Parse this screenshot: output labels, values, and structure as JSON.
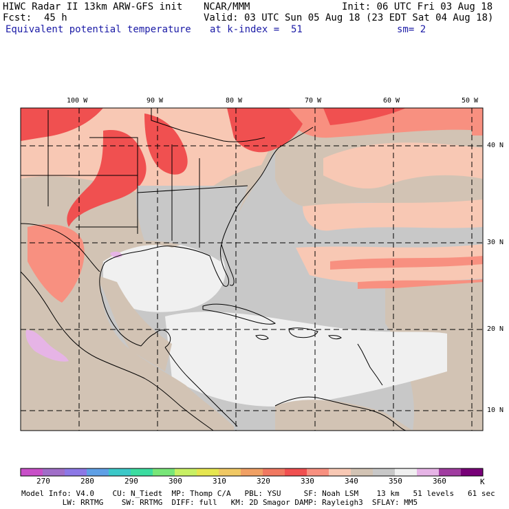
{
  "header": {
    "title": "HIWC Radar II 13km ARW-GFS init",
    "org": "NCAR/MMM",
    "init": "Init: 06 UTC Fri 03 Aug 18",
    "fcst_label": "Fcst:",
    "fcst_value": "45 h",
    "valid": "Valid: 03 UTC Sun 05 Aug 18 (23 EDT Sat 04 Aug 18)",
    "field": "Equivalent potential temperature",
    "level": "at k-index =  51",
    "smoothing": "sm= 2"
  },
  "axes": {
    "lon_labels": [
      "100 W",
      "90 W",
      "80 W",
      "70 W",
      "60 W",
      "50 W"
    ],
    "lat_labels": [
      "40 N",
      "30 N",
      "20 N",
      "10 N"
    ]
  },
  "colorbar": {
    "unit": "K",
    "tick_labels": [
      "270",
      "280",
      "290",
      "300",
      "310",
      "320",
      "330",
      "340",
      "350",
      "360"
    ],
    "colors": [
      "#c84fc8",
      "#a06ec8",
      "#8c78e6",
      "#5fa0e6",
      "#3cc8c8",
      "#3cdca0",
      "#78e678",
      "#c8f064",
      "#e6e650",
      "#f0c864",
      "#f0a064",
      "#f07860",
      "#f05050",
      "#f89080",
      "#f8c8b4",
      "#d2c3b4",
      "#c8c8c8",
      "#f0f0f0",
      "#e6b4e6",
      "#a03ca0",
      "#780078"
    ]
  },
  "footer": {
    "line1": "Model Info: V4.0    CU: N_Tiedt  MP: Thomp C/A   PBL: YSU     SF: Noah LSM    13 km   51 levels   61 sec",
    "line2": "         LW: RRTMG    SW: RRTMG  DIFF: full   KM: 2D Smagor DAMP: Rayleigh3  SFLAY: MM5"
  },
  "colors": {
    "ocean_gray": "#c8c8c8",
    "tan": "#d2c3b4",
    "salmon": "#f8c8b4",
    "red": "#f05050",
    "light_red": "#f89080",
    "near_white": "#f0f0f0"
  }
}
